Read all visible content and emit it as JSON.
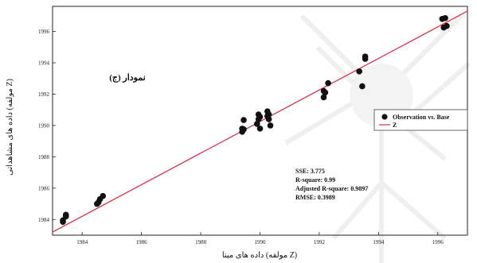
{
  "chart_data": {
    "type": "scatter",
    "panel_label": "نمودار (ج)",
    "xlabel": "داده های مبنا (مولفه Z)",
    "ylabel": "داده های مشاهداتی (مولفه Z)",
    "xlim": [
      1983.0,
      1997.0
    ],
    "ylim": [
      1983.0,
      1997.6
    ],
    "x_ticks": [
      1984,
      1986,
      1988,
      1990,
      1992,
      1994,
      1996
    ],
    "y_ticks": [
      1984,
      1986,
      1988,
      1990,
      1992,
      1994,
      1996
    ],
    "x_tick_labels": [
      "1984",
      "1986",
      "1988",
      "1990",
      "1992",
      "1994",
      "1996"
    ],
    "y_tick_labels": [
      "1984",
      "1986",
      "1988",
      "1990",
      "1992",
      "1994",
      "1996"
    ],
    "grid": false,
    "legend_position": "right",
    "series": [
      {
        "name": "Observation vs. Base",
        "kind": "points",
        "color": "#111111",
        "points": [
          [
            1983.35,
            1983.85
          ],
          [
            1983.35,
            1983.95
          ],
          [
            1983.45,
            1984.2
          ],
          [
            1983.45,
            1984.3
          ],
          [
            1984.5,
            1985.0
          ],
          [
            1984.55,
            1985.1
          ],
          [
            1984.6,
            1985.3
          ],
          [
            1984.7,
            1985.5
          ],
          [
            1989.4,
            1989.6
          ],
          [
            1989.4,
            1989.8
          ],
          [
            1989.45,
            1990.35
          ],
          [
            1989.45,
            1989.75
          ],
          [
            1989.9,
            1990.1
          ],
          [
            1989.95,
            1990.4
          ],
          [
            1989.95,
            1990.7
          ],
          [
            1990.0,
            1989.8
          ],
          [
            1990.0,
            1990.55
          ],
          [
            1990.25,
            1990.9
          ],
          [
            1990.25,
            1990.6
          ],
          [
            1990.3,
            1990.4
          ],
          [
            1990.3,
            1990.7
          ],
          [
            1990.35,
            1990.0
          ],
          [
            1992.15,
            1991.8
          ],
          [
            1992.15,
            1992.2
          ],
          [
            1992.2,
            1992.1
          ],
          [
            1992.3,
            1992.7
          ],
          [
            1993.35,
            1993.45
          ],
          [
            1993.45,
            1992.5
          ],
          [
            1993.55,
            1994.25
          ],
          [
            1993.55,
            1994.4
          ],
          [
            1996.15,
            1996.8
          ],
          [
            1996.2,
            1996.25
          ],
          [
            1996.25,
            1996.85
          ],
          [
            1996.3,
            1996.35
          ]
        ]
      },
      {
        "name": "Z",
        "kind": "line",
        "color": "#d6304a",
        "points": [
          [
            1983.0,
            1983.2
          ],
          [
            1997.0,
            1997.3
          ]
        ]
      }
    ],
    "stats": [
      "SSE: 3.775",
      "R-square: 0.99",
      "Adjusted R-square: 0.9897",
      "RMSE: 0.3989"
    ]
  }
}
